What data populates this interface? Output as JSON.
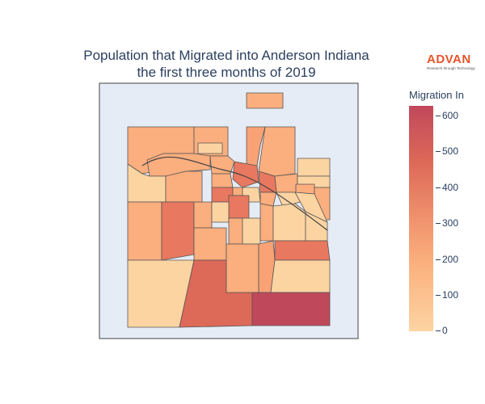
{
  "title_line1": "Population that Migrated into Anderson Indiana",
  "title_line2": "the first three months of 2019",
  "logo": {
    "word": "ADVAN",
    "tagline": "Research through Technology"
  },
  "colorbar": {
    "title": "Migration In",
    "ticks": [
      "600",
      "500",
      "400",
      "300",
      "200",
      "100",
      "0"
    ],
    "range": [
      0,
      630
    ],
    "colorscale": [
      "#fcd4a2",
      "#fbb07e",
      "#f0926d",
      "#dd6958",
      "#c0485b"
    ]
  },
  "map": {
    "background": "#e5ecf6",
    "border": "#444444"
  }
}
